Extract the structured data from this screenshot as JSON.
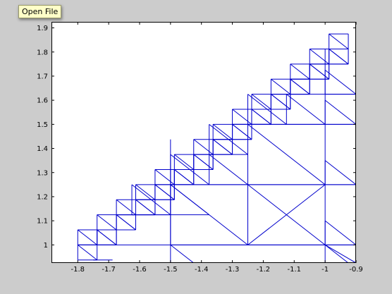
{
  "tooltip": {
    "text": "Open File"
  },
  "colors": {
    "figure_bg": "#cccccc",
    "axes_bg": "#ffffff",
    "line": "#0000cc",
    "axis": "#000000"
  },
  "chart_data": {
    "type": "line",
    "title": "",
    "xlabel": "",
    "ylabel": "",
    "xlim": [
      -1.885,
      -0.9
    ],
    "ylim": [
      0.925,
      1.925
    ],
    "grid": false,
    "xticks": [
      -1.8,
      -1.7,
      -1.6,
      -1.5,
      -1.4,
      -1.3,
      -1.2,
      -1.1,
      -1,
      -0.9
    ],
    "xtick_labels": [
      "-1.8",
      "-1.7",
      "-1.6",
      "-1.5",
      "-1.4",
      "-1.3",
      "-1.2",
      "-1.1",
      "-1",
      "-0.9"
    ],
    "yticks": [
      1,
      1.1,
      1.2,
      1.3,
      1.4,
      1.5,
      1.6,
      1.7,
      1.8,
      1.9
    ],
    "ytick_labels": [
      "1",
      "1.1",
      "1.2",
      "1.3",
      "1.4",
      "1.5",
      "1.6",
      "1.7",
      "1.8",
      "1.9"
    ],
    "mesh": {
      "description_units": "data units",
      "x_start": -1.8,
      "y_start": 0.9375,
      "step": 0.0625,
      "rows": 14,
      "cell_size": 0.0625,
      "coarse_triangles": [
        [
          -1.5,
          1.0,
          -1.25,
          1.25
        ],
        [
          -1.25,
          1.0,
          -1.0,
          1.25
        ],
        [
          -1.25,
          1.25,
          -1.0,
          1.5
        ],
        [
          -1.0,
          1.0,
          -0.9,
          1.1
        ],
        [
          -1.0,
          1.25,
          -0.9,
          1.35
        ],
        [
          -1.0,
          1.5,
          -0.9,
          1.6
        ],
        [
          -1.625,
          1.125,
          -1.5,
          1.25
        ],
        [
          -1.5,
          1.25,
          -1.375,
          1.375
        ],
        [
          -1.5,
          1.125,
          -1.375,
          1.25
        ],
        [
          -1.375,
          1.375,
          -1.25,
          1.5
        ],
        [
          -1.375,
          1.25,
          -1.25,
          1.375
        ],
        [
          -1.25,
          1.5,
          -1.125,
          1.625
        ],
        [
          -1.125,
          1.5,
          -1.0,
          1.625
        ],
        [
          -1.0,
          1.625,
          -0.9,
          1.725
        ]
      ],
      "extra_diagonals": [
        [
          -1.5,
          0.925,
          -1.415,
          0.84
        ],
        [
          -1.25,
          1.0,
          -1.0,
          1.25
        ],
        [
          -1.0,
          1.0,
          -0.9,
          0.925
        ]
      ]
    }
  }
}
